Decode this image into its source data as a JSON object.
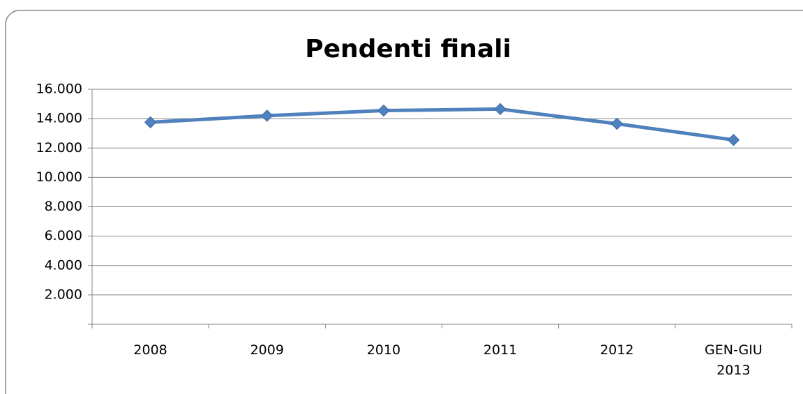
{
  "chart_data": {
    "type": "line",
    "title": "Pendenti finali",
    "categories": [
      "2008",
      "2009",
      "2010",
      "2011",
      "2012",
      "GEN-GIU 2013"
    ],
    "series": [
      {
        "name": "Pendenti finali",
        "color": "#4f81bd",
        "values": [
          13750,
          14200,
          14550,
          14650,
          13650,
          12550
        ]
      }
    ],
    "ylim": [
      0,
      16000
    ],
    "yticks": [
      {
        "value": 2000,
        "label": "2.000"
      },
      {
        "value": 4000,
        "label": "4.000"
      },
      {
        "value": 6000,
        "label": "6.000"
      },
      {
        "value": 8000,
        "label": "8.000"
      },
      {
        "value": 10000,
        "label": "10.000"
      },
      {
        "value": 12000,
        "label": "12.000"
      },
      {
        "value": 14000,
        "label": "14.000"
      },
      {
        "value": 16000,
        "label": "16.000"
      }
    ],
    "grid": true
  }
}
